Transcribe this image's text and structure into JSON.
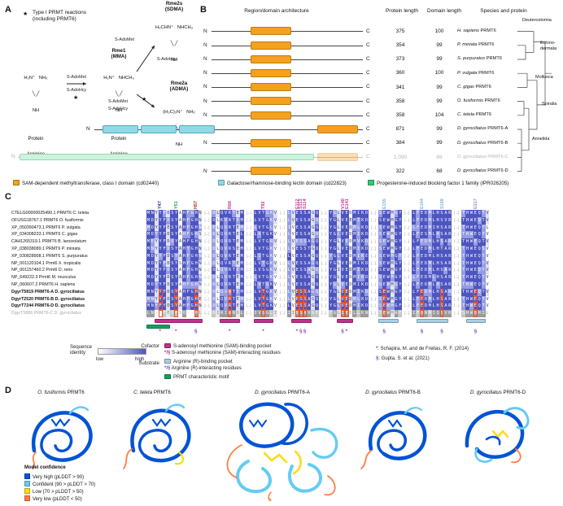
{
  "panelA": {
    "label": "A",
    "star": "★",
    "legend_line1": "Type I PRMT reactions",
    "legend_line2": "(including PRMT6)",
    "molecules": {
      "arg": {
        "l1": "H₂N⁺   NH₂",
        "l2": "╲ ╱",
        "l3": "NH",
        "cap1": "Protein",
        "cap2": "Arginine"
      },
      "mma": {
        "name1": "Rme1",
        "name2": "(MMA)",
        "l1": "H₂N⁺   NHCH₃",
        "l2": "╲ ╱",
        "l3": "NH",
        "cap1": "Protein",
        "cap2": "Arginine"
      },
      "sdma": {
        "name1": "Rme2s",
        "name2": "(SDMA)",
        "l1": "H₃CHN⁺   NHCH₃",
        "l2": "╲ ╱",
        "l3": "NH"
      },
      "adma": {
        "name1": "Rme2a",
        "name2": "(ADMA)",
        "l1": "(H₃C)₂N⁺   NH₂",
        "l2": "╲ ╱",
        "l3": "NH"
      }
    },
    "arrow1": {
      "top": "S-AdoMet",
      "bottom": "S-AdoHcy"
    },
    "arrow2": {
      "top": "S-AdoMet",
      "bottom": "S-AdoHcy"
    },
    "arrow3": {
      "top": "S-AdoMet",
      "bottom": "S-AdoHcy"
    }
  },
  "panelB": {
    "label": "B",
    "headers": {
      "architecture": "Region/domain architecture",
      "protein_length": "Protein length",
      "domain_length": "Domain length",
      "species": "Species and protein"
    },
    "terminal_n": "N",
    "terminal_c": "C",
    "rows": [
      {
        "protein_length": "375",
        "domain_length": "100",
        "species_it": "H. sapiens",
        "protein": "PRMT6",
        "type": "std"
      },
      {
        "protein_length": "354",
        "domain_length": "99",
        "species_it": "P. miniata",
        "protein": "PRMT6",
        "type": "std"
      },
      {
        "protein_length": "373",
        "domain_length": "99",
        "species_it": "S. purpuratus",
        "protein": "PRMT6",
        "type": "std"
      },
      {
        "protein_length": "360",
        "domain_length": "100",
        "species_it": "P. vulgata",
        "protein": "PRMT6",
        "type": "std"
      },
      {
        "protein_length": "341",
        "domain_length": "99",
        "species_it": "C. gigas",
        "protein": "PRMT6",
        "type": "std"
      },
      {
        "protein_length": "358",
        "domain_length": "99",
        "species_it": "O. fusiformis",
        "protein": "PRMT6",
        "type": "std"
      },
      {
        "protein_length": "358",
        "domain_length": "104",
        "species_it": "C. teleta",
        "protein": "PRMT6",
        "type": "std"
      },
      {
        "protein_length": "871",
        "domain_length": "99",
        "species_it": "D. gyrociliatus",
        "protein": "PRMT6-A",
        "type": "lectin"
      },
      {
        "protein_length": "384",
        "domain_length": "99",
        "species_it": "D. gyrociliatus",
        "protein": "PRMT6-B",
        "type": "std"
      },
      {
        "protein_length": "1,090",
        "domain_length": "69",
        "species_it": "D. gyrociliatus",
        "protein": "PRMT6-C",
        "type": "pibf"
      },
      {
        "protein_length": "322",
        "domain_length": "68",
        "species_it": "D. gyrociliatus",
        "protein": "PRMT6-D",
        "type": "std"
      }
    ],
    "clades": {
      "deuterostomia": "Deuterostomia",
      "echinodermata1": "Echino-",
      "echinodermata2": "dermata",
      "mollusca": "Mollusca",
      "spiralia": "Spiralia",
      "annelida": "Annelida"
    },
    "legend": [
      {
        "swatch": "#F5A11F",
        "label": "SAM-dependent methyltransferase, class I domain (cd02440)"
      },
      {
        "swatch": "#8FD9E9",
        "label": "Galactose/rhamnose-binding lectin domain (cd22823)"
      },
      {
        "swatch": "#2ECC71",
        "label": "Progesterone-induced blocking factor 1 family (IPR026205)"
      }
    ]
  },
  "panelC": {
    "label": "C",
    "gap": "[...]",
    "colors": {
      "sam": "#c2308c",
      "arg": "#a9cfe6",
      "motif": "#17a05c",
      "gup": "#7a52c7"
    },
    "residues": [
      {
        "label": "Y47",
        "color": "#27348b",
        "block": 0,
        "col": 3
      },
      {
        "label": "Y51",
        "color": "#1e9e50",
        "block": 0,
        "col": 7
      },
      {
        "label": "H57",
        "color": "#a93226",
        "block": 0,
        "col": 12
      },
      {
        "label": "R66",
        "color": "#cb3694",
        "block": 1,
        "col": 4
      },
      {
        "label": "T93",
        "color": "#cb3694",
        "block": 2,
        "col": 2
      },
      {
        "label": "E112",
        "color": "#cb3694",
        "block": 3,
        "col": 2
      },
      {
        "label": "S113",
        "color": "#cb3694",
        "block": 3,
        "col": 3
      },
      {
        "label": "S114",
        "color": "#cb3694",
        "block": 3,
        "col": 4
      },
      {
        "label": "V140",
        "color": "#cb3694",
        "block": 4,
        "col": 3
      },
      {
        "label": "E141",
        "color": "#cb3694",
        "block": 4,
        "col": 4
      },
      {
        "label": "E155",
        "color": "#7fb2d8",
        "block": 5,
        "col": 1
      },
      {
        "label": "E164",
        "color": "#7fb2d8",
        "block": 6,
        "col": 2
      },
      {
        "label": "S169",
        "color": "#7fb2d8",
        "block": 6,
        "col": 7
      },
      {
        "label": "E317",
        "color": "#8d93c0",
        "block": 7,
        "col": 3
      }
    ],
    "rows": [
      {
        "name": "CTELG00000025490.1 PRMT6 C. teleta",
        "style": "std",
        "blocks": [
          "MNYYFDSYAHFGHN",
          "DLQVRTEM",
          "LVTGKV",
          "LVESSAGQ",
          "YGLVEDMIKD",
          "SEWMGY",
          "LFEDMLHSAR",
          "THWEQTV"
        ]
      },
      {
        "name": "OFUSG18767.1 PRMT6 O. fusiformis",
        "style": "std",
        "blocks": [
          "MDYYFDSYAHFGHN",
          "DLKVRTEM",
          "LVTGKV",
          "LVESSAGQ",
          "YGLVEEMIKD",
          "SEWMGY",
          "LFEDMLHSVR",
          "THWEQTV"
        ]
      },
      {
        "name": "XP_050390473.1 PRMT6 P. vulgata",
        "style": "std",
        "blocks": [
          "MDYYFESYAHFGHN",
          "ELQVRTEM",
          "LVTGLV",
          "IVESSAGQ",
          "YGLVEDMLKD",
          "SEWMGY",
          "LFEDMIHSAR",
          "THWEQTL"
        ]
      },
      {
        "name": "XP_034308233.1 PRMT6 C. gigas",
        "style": "std",
        "blocks": [
          "MDYYFDSYAHFGHS",
          "DLQVRTEL",
          "LVTGKV",
          "LVESSAGH",
          "YGLVEDMIKD",
          "SEWMGY",
          "LFESMLHSAR",
          "THWEQTV"
        ]
      },
      {
        "name": "CAH1265319.1 PRMT6 B. lanceolatum",
        "style": "std",
        "blocks": [
          "MEYYFDSYAHFGHN",
          "DLQVRTEM",
          "LVTGRV",
          "LVESSAGQ",
          "YGLVEDMVKD",
          "SEWMGY",
          "LFEDMLHSAR",
          "THWEQTV"
        ]
      },
      {
        "name": "XP_038038089.1 PRMT6 P. miniata",
        "style": "std",
        "blocks": [
          "MNYYFDSYAHYGHN",
          "DLQVRSEM",
          "LVTGKV",
          "LVESSTGQ",
          "YGLVEDMIKD",
          "SEWMGY",
          "LFEDMLHTAR",
          "THWEQSV"
        ]
      },
      {
        "name": "XP_030828908.1 PRMT6 S. purpuratus",
        "style": "std",
        "blocks": [
          "MDYYFDSYAHFGHN",
          "DLQVRTEM",
          "LITGKV",
          "LVESSAGQ",
          "YGLVEDMIKE",
          "SEWMGY",
          "LFEDMLHSAR",
          "THWEQTV"
        ]
      },
      {
        "name": "NP_001120104.1 Prmt6 X. tropicalis",
        "style": "std",
        "blocks": [
          "MDYYFDSYSHFGHN",
          "DLQVRTEM",
          "LVTGKV",
          "LVESSAGQ",
          "YGLVEDMIKD",
          "SEWMGY",
          "LFEDMLHSAR",
          "THWEQTV"
        ]
      },
      {
        "name": "NP_001157460.2 Prmt6 D. rerio",
        "style": "std",
        "blocks": [
          "MDYYFDSYAHFGHN",
          "DLQVRTEM",
          "LVSGKV",
          "LVESSAGQ",
          "YGIVEDMIKD",
          "SEWMGY",
          "LFEDMLHSAR",
          "THWEQTV"
        ]
      },
      {
        "name": "NP_649222.3 Prmt6 M. musculus",
        "style": "std",
        "blocks": [
          "MDYYFDSYAHFGHN",
          "DLQVRTEM",
          "LVTGKV",
          "LVESSAGQ",
          "YGLVEDMIKD",
          "SEWMGY",
          "LFEDMLHSAR",
          "THWEQTV"
        ]
      },
      {
        "name": "NP_060607.2 PRMT6 H. sapiens",
        "style": "std",
        "blocks": [
          "MDYYFDSYAHFGHN",
          "DLQVRTEM",
          "LVTGKV",
          "LVESSAGQ",
          "YGLVEDMIKD",
          "SEWMGY",
          "LFEDMLHSAR",
          "THWEQTV"
        ]
      },
      {
        "name": "DgyrT5819 PRMT6-A D. gyrociliatus",
        "style": "bold",
        "blocks": [
          "MNYYFDSYAHFGHN",
          "DLQVRTEM",
          "LVTGKV",
          "LVESSAGQ",
          "YGLVEDMIKD",
          "SEWMGY",
          "LFEDMLHSAR",
          "THWEQTV"
        ]
      },
      {
        "name": "DgyrT2520 PRMT6-B D. gyrociliatus",
        "style": "bold",
        "blocks": [
          "MNYYFDSYAHFGHE",
          "DLQVRTEM",
          "LVTGKV",
          "LVESSAGQ",
          "YGLVEDMLKD",
          "SEWMGY",
          "LFEDMLHSAR",
          "THWEQTV"
        ]
      },
      {
        "name": "DgyrT7244 PRMT6-D D. gyrociliatus",
        "style": "bold",
        "blocks": [
          "MNYFYDSYAHFGHN",
          "DLQVRTEM",
          "LVTGKV",
          "LVESSAGQ",
          "YGLVEDMIKD",
          "SEWMGF",
          "LFEDMLHSAR",
          "THWEQTV"
        ]
      },
      {
        "name": "DgyrT5886 PRMT6-C D. gyrociliatus",
        "style": "gray",
        "blocks": [
          "LN--FESFSQ--HL",
          "DIKIRNDL",
          "IVSGLI",
          "IIDSNVGE",
          "FGLIEDLLKN",
          "TEWMAF",
          "IFDNMIQSVK",
          "SHWDHIL"
        ]
      }
    ],
    "annotations": {
      "bars": [
        {
          "block": 0,
          "from": 2,
          "to": 13,
          "type": "sam",
          "row": 0
        },
        {
          "block": 0,
          "from": 0,
          "to": 5,
          "type": "motif",
          "row": 1
        },
        {
          "block": 1,
          "from": 2,
          "to": 6,
          "type": "sam",
          "row": 0
        },
        {
          "block": 2,
          "from": 0,
          "to": 4,
          "type": "sam",
          "row": 0
        },
        {
          "block": 3,
          "from": 1,
          "to": 5,
          "type": "sam",
          "row": 0
        },
        {
          "block": 4,
          "from": 2,
          "to": 5,
          "type": "sam",
          "row": 0
        },
        {
          "block": 5,
          "from": 0,
          "to": 4,
          "type": "arg",
          "row": 0
        },
        {
          "block": 6,
          "from": 1,
          "to": 8,
          "type": "arg",
          "row": 0
        },
        {
          "block": 7,
          "from": 1,
          "to": 5,
          "type": "arg",
          "row": 0
        }
      ],
      "symbols": [
        {
          "block": 0,
          "col": 3,
          "ch": "*",
          "cls": "sam"
        },
        {
          "block": 0,
          "col": 7,
          "ch": "*",
          "cls": "sam"
        },
        {
          "block": 0,
          "col": 12,
          "ch": "§",
          "cls": "gup"
        },
        {
          "block": 1,
          "col": 4,
          "ch": "*",
          "cls": "sam"
        },
        {
          "block": 2,
          "col": 2,
          "ch": "*",
          "cls": "sam"
        },
        {
          "block": 3,
          "col": 2,
          "ch": "*",
          "cls": "sam"
        },
        {
          "block": 3,
          "col": 3,
          "ch": "§",
          "cls": "gup"
        },
        {
          "block": 3,
          "col": 4,
          "ch": "§",
          "cls": "gup"
        },
        {
          "block": 4,
          "col": 3,
          "ch": "§",
          "cls": "gup"
        },
        {
          "block": 4,
          "col": 4,
          "ch": "*",
          "cls": "sam"
        },
        {
          "block": 5,
          "col": 1,
          "ch": "§",
          "cls": "gup"
        },
        {
          "block": 6,
          "col": 2,
          "ch": "§",
          "cls": "gup"
        },
        {
          "block": 6,
          "col": 7,
          "ch": "§",
          "cls": "gup"
        },
        {
          "block": 7,
          "col": 3,
          "ch": "§",
          "cls": "gup"
        }
      ]
    },
    "legend": {
      "seq_identity": {
        "line1": "Sequence",
        "line2": "identity",
        "low": "low",
        "high": "high"
      },
      "cofactor_label": "Cofactor",
      "substrate_label": "Substrate",
      "sam_pocket": "S-adenosyl methionine (SAM)-binding pocket",
      "sam_residues": "S-adenosyl methionine (SAM)-interacting residues",
      "arg_pocket": "Arginine (R)-binding pocket",
      "arg_residues": "Arginine (R)-interacting residues",
      "motif": "PRMT characteristic motif",
      "symbol_pair": "*/§",
      "refs": [
        {
          "symbol": "*",
          "text": ": Schapira, M. and de Freitas, R. F. (2014)"
        },
        {
          "symbol": "§",
          "text": ": Gupta, S. et al. (2021)"
        }
      ]
    }
  },
  "panelD": {
    "label": "D",
    "structures": [
      {
        "species": "O. fusiformis",
        "protein": "PRMT6"
      },
      {
        "species": "C. teleta",
        "protein": "PRMT6"
      },
      {
        "species": "D. gyrociliatus",
        "protein": "PRMT6-A"
      },
      {
        "species": "D. gyrociliatus",
        "protein": "PRMT6-B"
      },
      {
        "species": "D. gyrociliatus",
        "protein": "PRMT6-D"
      }
    ],
    "legend": {
      "title": "Model confidence",
      "items": [
        {
          "swatch": "#0053D6",
          "label": "Very high (pLDDT > 90)"
        },
        {
          "swatch": "#65CBF3",
          "label": "Confident (90 > pLDDT > 70)"
        },
        {
          "swatch": "#FFDB13",
          "label": "Low (70 > pLDDT > 50)"
        },
        {
          "swatch": "#FF7D45",
          "label": "Very low (pLDDT < 50)"
        }
      ]
    }
  }
}
